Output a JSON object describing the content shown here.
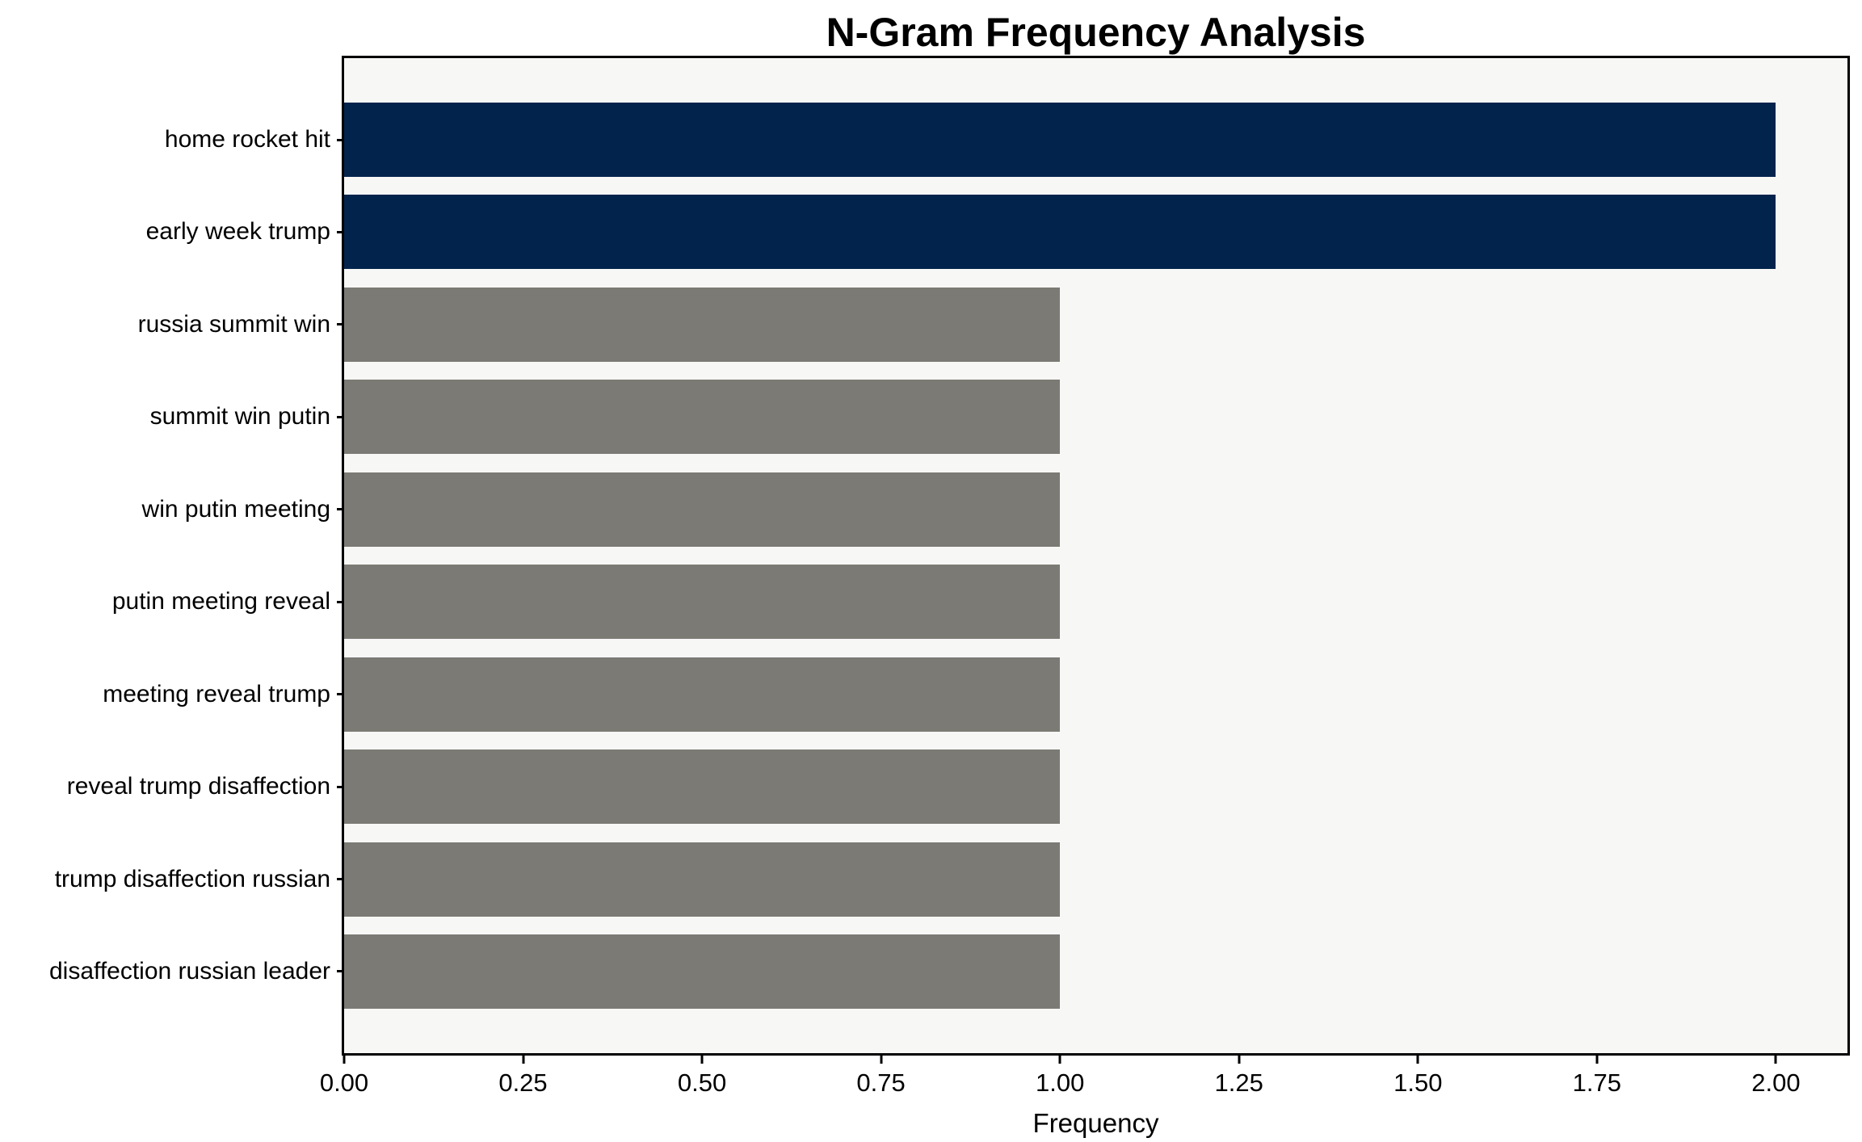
{
  "chart_data": {
    "type": "bar",
    "orientation": "horizontal",
    "title": "N-Gram Frequency Analysis",
    "xlabel": "Frequency",
    "ylabel": "",
    "categories": [
      "home rocket hit",
      "early week trump",
      "russia summit win",
      "summit win putin",
      "win putin meeting",
      "putin meeting reveal",
      "meeting reveal trump",
      "reveal trump disaffection",
      "trump disaffection russian",
      "disaffection russian leader"
    ],
    "values": [
      2,
      2,
      1,
      1,
      1,
      1,
      1,
      1,
      1,
      1
    ],
    "bar_colors": [
      "#02234c",
      "#02234c",
      "#7b7a74",
      "#7b7a74",
      "#7b7a74",
      "#7b7a74",
      "#7b7a74",
      "#7b7a74",
      "#7b7a74",
      "#7b7a74"
    ],
    "xlim": [
      0,
      2.1
    ],
    "xticks": {
      "values": [
        0,
        0.25,
        0.5,
        0.75,
        1.0,
        1.25,
        1.5,
        1.75,
        2.0
      ],
      "labels": [
        "0.00",
        "0.25",
        "0.50",
        "0.75",
        "1.00",
        "1.25",
        "1.50",
        "1.75",
        "2.00"
      ]
    },
    "grid": false,
    "legend": null,
    "colors": {
      "highlight": "#02234c",
      "default": "#7b7a74",
      "plot_background": "#f7f7f6",
      "figure_background": "#ffffff",
      "axis": "#000000",
      "text": "#000000"
    }
  }
}
